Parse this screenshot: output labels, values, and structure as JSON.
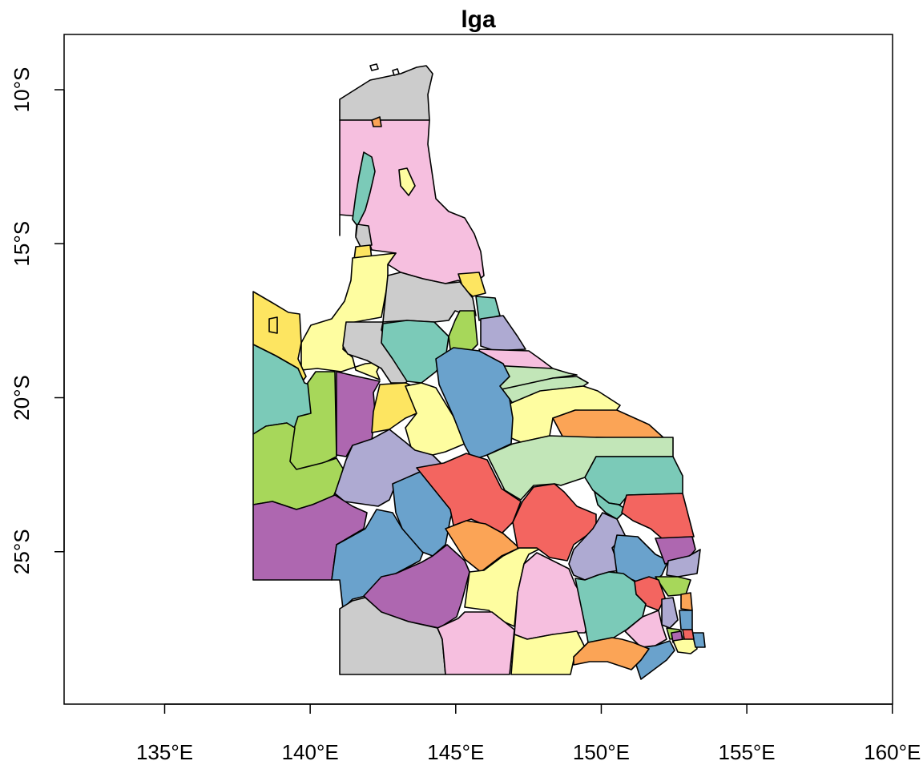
{
  "map": {
    "title": "lga",
    "x_axis": {
      "ticks": [
        {
          "lon": 135,
          "label": "135°E"
        },
        {
          "lon": 140,
          "label": "140°E"
        },
        {
          "lon": 145,
          "label": "145°E"
        },
        {
          "lon": 150,
          "label": "150°E"
        },
        {
          "lon": 155,
          "label": "155°E"
        },
        {
          "lon": 160,
          "label": "160°E"
        }
      ]
    },
    "y_axis": {
      "ticks": [
        {
          "lat": -10,
          "label": "10°S"
        },
        {
          "lat": -15,
          "label": "15°S"
        },
        {
          "lat": -20,
          "label": "20°S"
        },
        {
          "lat": -25,
          "label": "25°S"
        }
      ]
    },
    "palette": {
      "grey": "#cccccc",
      "pink": "#f6bfdf",
      "yellow": "#fde561",
      "teal": "#7bcab8",
      "green": "#a7d75a",
      "purple": "#ae67b0",
      "lavender": "#aeaad2",
      "blue": "#6aa2cc",
      "lightyellow": "#fefda0",
      "mint": "#c2e6b8",
      "orange": "#fba456",
      "red": "#f36560",
      "outline": "#000000"
    }
  }
}
